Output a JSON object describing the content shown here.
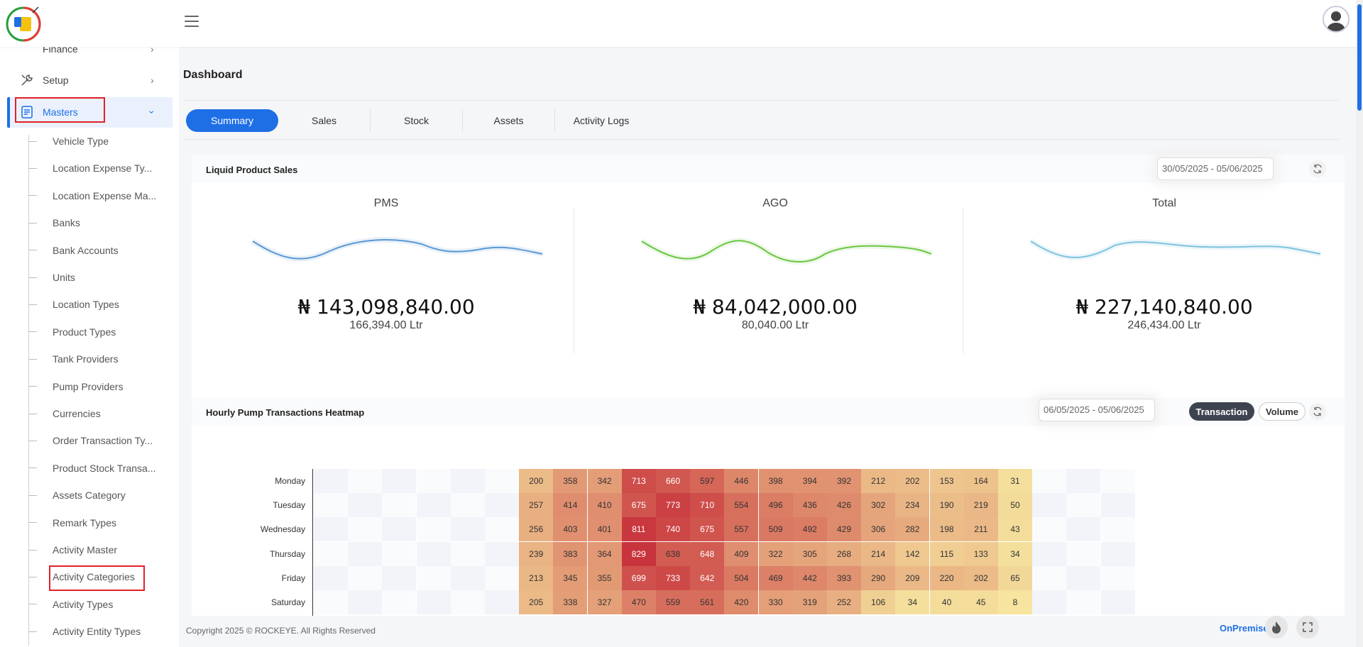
{
  "sidebar": {
    "top_items": [
      {
        "label": "Finance"
      },
      {
        "label": "Setup"
      },
      {
        "label": "Masters"
      }
    ],
    "sub_items": [
      {
        "label": "Vehicle Type"
      },
      {
        "label": "Location Expense Ty..."
      },
      {
        "label": "Location Expense Ma..."
      },
      {
        "label": "Banks"
      },
      {
        "label": "Bank Accounts"
      },
      {
        "label": "Units"
      },
      {
        "label": "Location Types"
      },
      {
        "label": "Product Types"
      },
      {
        "label": "Tank Providers"
      },
      {
        "label": "Pump Providers"
      },
      {
        "label": "Currencies"
      },
      {
        "label": "Order Transaction Ty..."
      },
      {
        "label": "Product Stock Transa..."
      },
      {
        "label": "Assets Category"
      },
      {
        "label": "Remark Types"
      },
      {
        "label": "Activity Master"
      },
      {
        "label": "Activity Categories"
      },
      {
        "label": "Activity Types"
      },
      {
        "label": "Activity Entity Types"
      }
    ]
  },
  "main": {
    "title": "Dashboard",
    "tabs": [
      {
        "label": "Summary",
        "active": true
      },
      {
        "label": "Sales"
      },
      {
        "label": "Stock"
      },
      {
        "label": "Assets"
      },
      {
        "label": "Activity Logs"
      }
    ]
  },
  "liquid_sales": {
    "title": "Liquid Product Sales",
    "date_range": "30/05/2025 - 05/06/2025",
    "metrics": [
      {
        "name": "PMS",
        "amount": "₦ 143,098,840.00",
        "volume": "166,394.00 Ltr",
        "color": "#4a8fd0"
      },
      {
        "name": "AGO",
        "amount": "₦ 84,042,000.00",
        "volume": "80,040.00 Ltr",
        "color": "#6cc644"
      },
      {
        "name": "Total",
        "amount": "₦ 227,140,840.00",
        "volume": "246,434.00 Ltr",
        "color": "#7ec3e0"
      }
    ]
  },
  "heatmap": {
    "title": "Hourly Pump Transactions Heatmap",
    "date_range": "06/05/2025 - 05/06/2025",
    "toggles": {
      "transaction": "Transaction",
      "volume": "Volume"
    },
    "days": [
      "Monday",
      "Tuesday",
      "Wednesday",
      "Thursday",
      "Friday",
      "Saturday"
    ],
    "hours_count": 24,
    "first_active_hour": 6,
    "rows": [
      [
        200,
        358,
        342,
        713,
        660,
        597,
        446,
        398,
        394,
        392,
        212,
        202,
        153,
        164,
        31
      ],
      [
        257,
        414,
        410,
        675,
        773,
        710,
        554,
        496,
        436,
        426,
        302,
        234,
        190,
        219,
        50
      ],
      [
        256,
        403,
        401,
        811,
        740,
        675,
        557,
        509,
        492,
        429,
        306,
        282,
        198,
        211,
        43
      ],
      [
        239,
        383,
        364,
        829,
        638,
        648,
        409,
        322,
        305,
        268,
        214,
        142,
        115,
        133,
        34
      ],
      [
        213,
        345,
        355,
        699,
        733,
        642,
        504,
        469,
        442,
        393,
        290,
        209,
        220,
        202,
        65
      ],
      [
        205,
        338,
        327,
        470,
        559,
        561,
        420,
        330,
        319,
        252,
        106,
        34,
        40,
        45,
        8
      ]
    ]
  },
  "footer": {
    "copyright": "Copyright 2025 © ROCKEYE. All Rights Reserved",
    "mode": "OnPremises"
  },
  "colors": {
    "accent": "#1e6fe6",
    "highlight_box": "#e0202a",
    "heat_low": "#f6e6a0",
    "heat_high": "#c8343c"
  },
  "icons": [
    "logo",
    "hamburger-icon",
    "user-avatar-icon",
    "finance-icon",
    "setup-icon",
    "masters-icon",
    "chevron-right-icon",
    "chevron-down-icon",
    "refresh-icon",
    "fire-icon",
    "fullscreen-icon"
  ]
}
